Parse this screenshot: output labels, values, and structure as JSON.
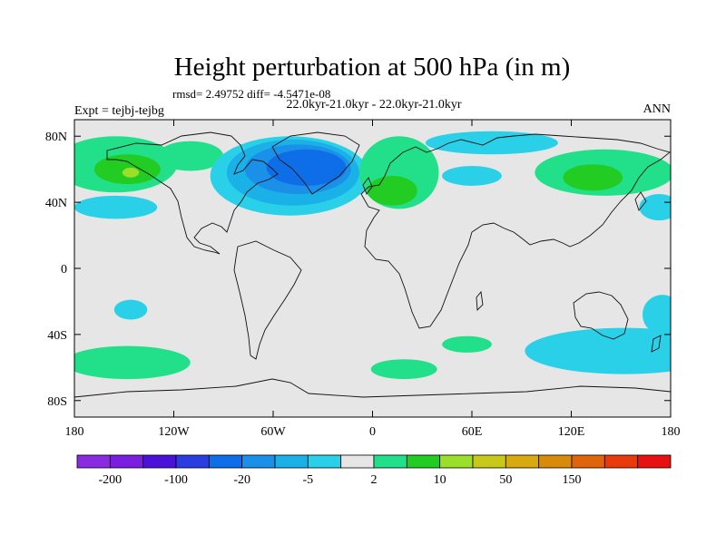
{
  "chart_data": {
    "type": "filled-contour-map",
    "title": "Height perturbation at 500 hPa (in m)",
    "stats": "rmsd= 2.49752 diff= -4.5471e-08",
    "subtitle": "22.0kyr-21.0kyr - 22.0kyr-21.0kyr",
    "left_label": "Expt = tejbj-tejbg",
    "right_label": "ANN",
    "xlim": [
      -180,
      180
    ],
    "ylim": [
      -90,
      90
    ],
    "x_ticks": [
      {
        "value": -180,
        "label": "180"
      },
      {
        "value": -120,
        "label": "120W"
      },
      {
        "value": -60,
        "label": "60W"
      },
      {
        "value": 0,
        "label": "0"
      },
      {
        "value": 60,
        "label": "60E"
      },
      {
        "value": 120,
        "label": "120E"
      },
      {
        "value": 180,
        "label": "180"
      }
    ],
    "y_ticks": [
      {
        "value": 80,
        "label": "80N"
      },
      {
        "value": 40,
        "label": "40N"
      },
      {
        "value": 0,
        "label": "0"
      },
      {
        "value": -40,
        "label": "40S"
      },
      {
        "value": -80,
        "label": "80S"
      }
    ],
    "colorbar": {
      "colors": [
        "#8a2be2",
        "#7a1fe0",
        "#4a12d8",
        "#2a3de0",
        "#0d6ee8",
        "#1a90e8",
        "#1ab0e8",
        "#2ad0e8",
        "#e6e6e6",
        "#22e08a",
        "#22cc22",
        "#9ae02a",
        "#c8c81a",
        "#d8aa10",
        "#d88a0a",
        "#e0640a",
        "#e83a0a",
        "#e81010"
      ],
      "labels": [
        {
          "after_box": 1,
          "text": "-200"
        },
        {
          "after_box": 3,
          "text": "-100"
        },
        {
          "after_box": 5,
          "text": "-20"
        },
        {
          "after_box": 7,
          "text": "-5"
        },
        {
          "after_box": 9,
          "text": "2"
        },
        {
          "after_box": 11,
          "text": "10"
        },
        {
          "after_box": 13,
          "text": "50"
        },
        {
          "after_box": 15,
          "text": "150"
        }
      ]
    },
    "anomaly_regions": [
      {
        "lon": -155,
        "lat": 63,
        "rlon": 37,
        "rlat": 17,
        "color": "#22e08a"
      },
      {
        "lon": -148,
        "lat": 60,
        "rlon": 20,
        "rlat": 9,
        "color": "#22cc22"
      },
      {
        "lon": -146,
        "lat": 58,
        "rlon": 5,
        "rlat": 3,
        "color": "#9ae02a"
      },
      {
        "lon": -110,
        "lat": 68,
        "rlon": 20,
        "rlat": 9,
        "color": "#22e08a"
      },
      {
        "lon": -155,
        "lat": 37,
        "rlon": 25,
        "rlat": 7,
        "color": "#2ad0e8"
      },
      {
        "lon": -50,
        "lat": 56,
        "rlon": 48,
        "rlat": 24,
        "color": "#2ad0e8"
      },
      {
        "lon": -48,
        "lat": 58,
        "rlon": 40,
        "rlat": 20,
        "color": "#1ab0e8"
      },
      {
        "lon": -45,
        "lat": 60,
        "rlon": 32,
        "rlat": 15,
        "color": "#1a90e8"
      },
      {
        "lon": -40,
        "lat": 61,
        "rlon": 24,
        "rlat": 11,
        "color": "#0d6ee8"
      },
      {
        "lon": 16,
        "lat": 58,
        "rlon": 24,
        "rlat": 22,
        "color": "#22e08a"
      },
      {
        "lon": 12,
        "lat": 47,
        "rlon": 15,
        "rlat": 9,
        "color": "#22cc22"
      },
      {
        "lon": 60,
        "lat": 56,
        "rlon": 18,
        "rlat": 6,
        "color": "#2ad0e8"
      },
      {
        "lon": 72,
        "lat": 76,
        "rlon": 40,
        "rlat": 7,
        "color": "#2ad0e8"
      },
      {
        "lon": 140,
        "lat": 58,
        "rlon": 42,
        "rlat": 14,
        "color": "#22e08a"
      },
      {
        "lon": 133,
        "lat": 55,
        "rlon": 18,
        "rlat": 8,
        "color": "#22cc22"
      },
      {
        "lon": 173,
        "lat": 37,
        "rlon": 12,
        "rlat": 8,
        "color": "#2ad0e8"
      },
      {
        "lon": -146,
        "lat": -25,
        "rlon": 10,
        "rlat": 6,
        "color": "#2ad0e8"
      },
      {
        "lon": -148,
        "lat": -57,
        "rlon": 38,
        "rlat": 10,
        "color": "#22e08a"
      },
      {
        "lon": 19,
        "lat": -61,
        "rlon": 20,
        "rlat": 6,
        "color": "#22e08a"
      },
      {
        "lon": 57,
        "lat": -46,
        "rlon": 15,
        "rlat": 5,
        "color": "#22e08a"
      },
      {
        "lon": 152,
        "lat": -50,
        "rlon": 60,
        "rlat": 14,
        "color": "#2ad0e8"
      },
      {
        "lon": 175,
        "lat": -28,
        "rlon": 12,
        "rlat": 12,
        "color": "#2ad0e8"
      }
    ]
  }
}
